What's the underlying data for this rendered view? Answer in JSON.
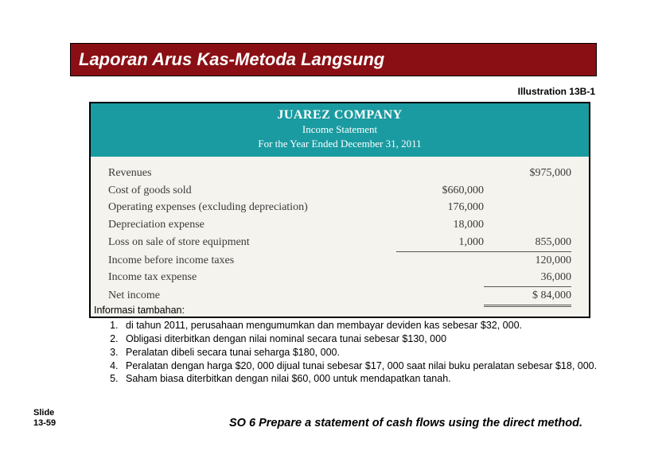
{
  "title": "Laporan Arus Kas-Metoda Langsung",
  "illustrationLabel": "Illustration 13B-1",
  "figure": {
    "company": "JUAREZ COMPANY",
    "statement": "Income Statement",
    "period": "For the Year Ended December 31, 2011",
    "rows": {
      "revenues": {
        "label": "Revenues",
        "col1": "",
        "col2": "$975,000"
      },
      "cogs": {
        "label": "Cost of goods sold",
        "col1": "$660,000",
        "col2": ""
      },
      "opex": {
        "label": "Operating expenses (excluding depreciation)",
        "col1": "176,000",
        "col2": ""
      },
      "dep": {
        "label": "Depreciation expense",
        "col1": "18,000",
        "col2": ""
      },
      "loss": {
        "label": "Loss on sale of store equipment",
        "col1": "1,000",
        "col2": "855,000"
      },
      "ibit": {
        "label": "Income before income taxes",
        "col1": "",
        "col2": "120,000"
      },
      "tax": {
        "label": "Income tax expense",
        "col1": "",
        "col2": "36,000"
      },
      "net": {
        "label": "Net income",
        "col1": "",
        "col2": "$  84,000"
      }
    }
  },
  "info": {
    "header": "Informasi tambahan:",
    "items": [
      "di tahun 2011, perusahaan mengumumkan dan membayar deviden kas sebesar  $32, 000.",
      "Obligasi diterbitkan dengan nilai nominal secara tunai sebesar $130, 000",
      "Peralatan dibeli secara tunai seharga $180, 000.",
      "Peralatan dengan harga $20, 000 dijual tunai sebesar $17, 000 saat nilai buku peralatan sebesar  $18, 000.",
      "Saham biasa diterbitkan dengan nilai $60, 000 untuk mendapatkan tanah."
    ]
  },
  "slide": {
    "word": "Slide",
    "num": "13-59"
  },
  "so": "SO 6 Prepare a statement of cash flows using the direct method."
}
